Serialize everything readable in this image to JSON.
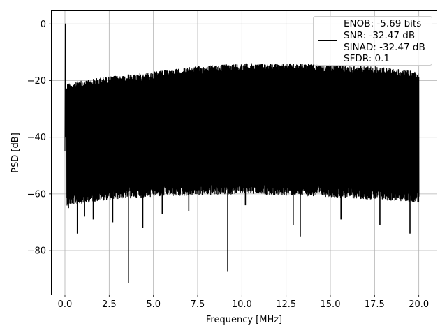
{
  "chart_data": {
    "type": "line",
    "title": "",
    "xlabel": "Frequency [MHz]",
    "ylabel": "PSD [dB]",
    "xlim": [
      -0.75,
      21.0
    ],
    "ylim": [
      -95.5,
      4.5
    ],
    "xticks": [
      0.0,
      2.5,
      5.0,
      7.5,
      10.0,
      12.5,
      15.0,
      17.5,
      20.0
    ],
    "xtick_labels": [
      "0.0",
      "2.5",
      "5.0",
      "7.5",
      "10.0",
      "12.5",
      "15.0",
      "17.5",
      "20.0"
    ],
    "yticks": [
      0,
      -20,
      -40,
      -60,
      -80
    ],
    "ytick_labels": [
      "0",
      "−20",
      "−40",
      "−60",
      "−80"
    ],
    "grid": true,
    "legend_position": "top-right",
    "series": [
      {
        "name": "ENOB: -5.69 bits\nSNR: -32.47 dB\nSINAD: -32.47 dB\nSFDR: 0.1",
        "legend_lines": [
          "ENOB: -5.69 bits",
          "SNR: -32.47 dB",
          "SINAD: -32.47 dB",
          "SFDR: 0.1"
        ],
        "color": "#000000",
        "description": "dense noise spectrum from 0 to 20 MHz",
        "peak": {
          "x": 0.02,
          "y": 0.0
        },
        "upper_envelope": {
          "x": [
            0.1,
            2.0,
            5.0,
            7.5,
            10.0,
            12.5,
            15.0,
            17.5,
            20.0
          ],
          "y": [
            -21,
            -19,
            -17,
            -15,
            -14,
            -14,
            -14.5,
            -15,
            -17
          ]
        },
        "lower_envelope": {
          "x": [
            0.1,
            2.5,
            5.0,
            10.0,
            15.0,
            20.0
          ],
          "y": [
            -60,
            -58,
            -57,
            -56,
            -57,
            -59
          ]
        },
        "notable_dips": [
          {
            "x": 0.2,
            "y": -65
          },
          {
            "x": 0.7,
            "y": -74
          },
          {
            "x": 1.1,
            "y": -68
          },
          {
            "x": 1.6,
            "y": -69
          },
          {
            "x": 2.7,
            "y": -70
          },
          {
            "x": 3.6,
            "y": -91.5
          },
          {
            "x": 4.4,
            "y": -72
          },
          {
            "x": 5.5,
            "y": -67
          },
          {
            "x": 7.0,
            "y": -66
          },
          {
            "x": 9.2,
            "y": -87.5
          },
          {
            "x": 10.2,
            "y": -64
          },
          {
            "x": 12.9,
            "y": -71
          },
          {
            "x": 13.3,
            "y": -75
          },
          {
            "x": 15.6,
            "y": -69
          },
          {
            "x": 17.8,
            "y": -71
          },
          {
            "x": 19.5,
            "y": -74
          }
        ]
      }
    ]
  }
}
